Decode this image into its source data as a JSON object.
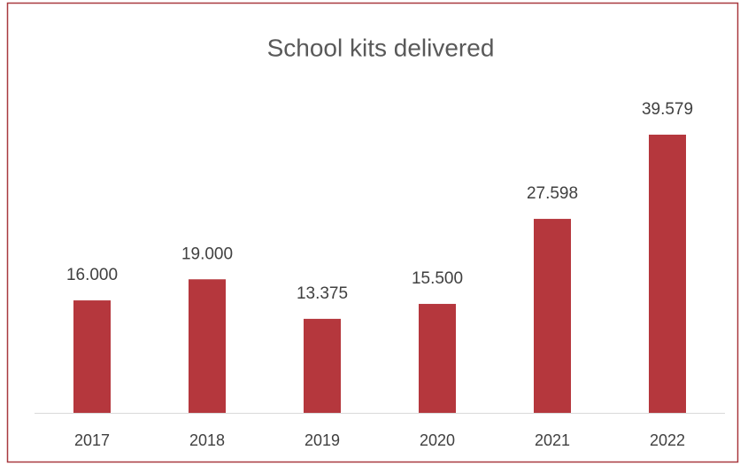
{
  "chart_data": {
    "type": "bar",
    "title": "School kits delivered",
    "categories": [
      "2017",
      "2018",
      "2019",
      "2020",
      "2021",
      "2022"
    ],
    "values": [
      16000,
      19000,
      13375,
      15500,
      27598,
      39579
    ],
    "value_labels": [
      "16.000",
      "19.000",
      "13.375",
      "15.500",
      "27.598",
      "39.579"
    ],
    "color": "#b5373d",
    "ylim": [
      0,
      45000
    ]
  }
}
